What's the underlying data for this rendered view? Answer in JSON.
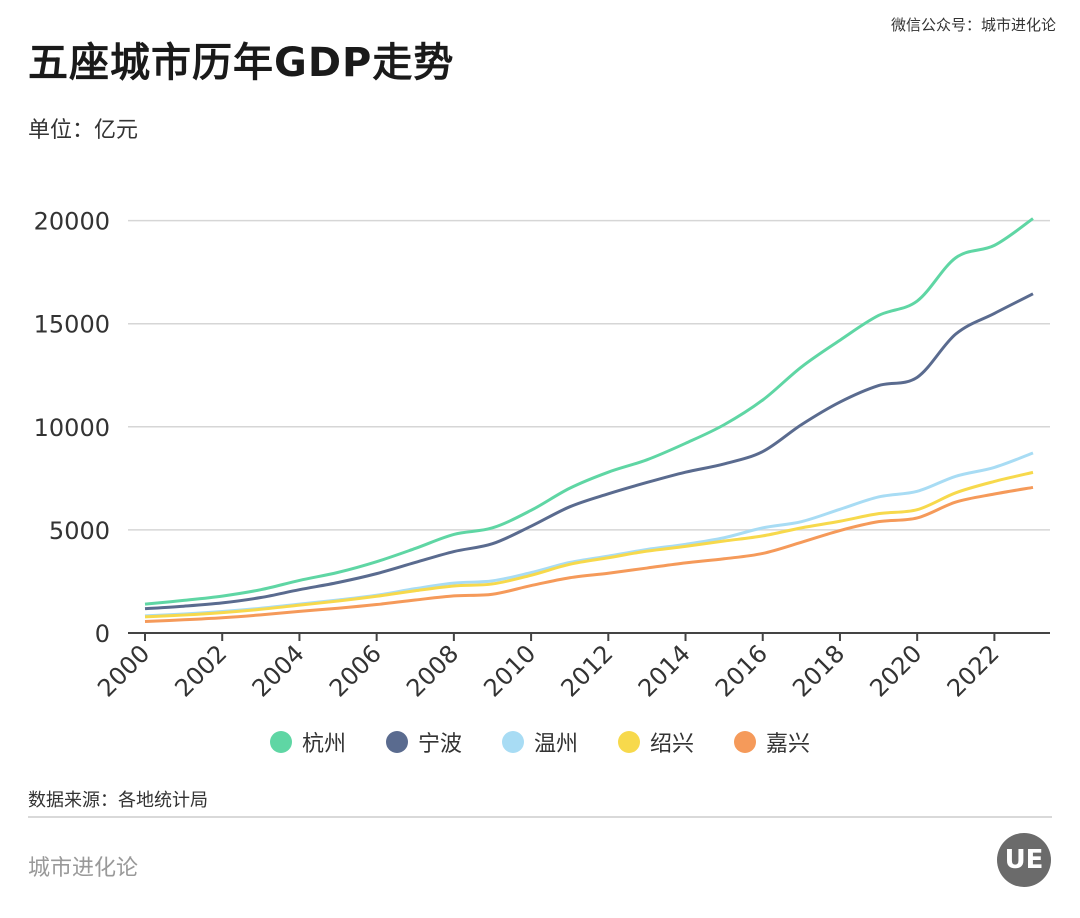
{
  "header": {
    "title": "五座城市历年GDP走势",
    "unit": "单位：亿元",
    "credit": "微信公众号：城市进化论"
  },
  "footer": {
    "source": "数据来源：各地统计局",
    "brand": "城市进化论",
    "logo_text": "UE"
  },
  "chart_data": {
    "type": "line",
    "x": [
      2000,
      2001,
      2002,
      2003,
      2004,
      2005,
      2006,
      2007,
      2008,
      2009,
      2010,
      2011,
      2012,
      2013,
      2014,
      2015,
      2016,
      2017,
      2018,
      2019,
      2020,
      2021,
      2022,
      2023
    ],
    "xticks": [
      "2000",
      "2002",
      "2004",
      "2006",
      "2008",
      "2010",
      "2012",
      "2014",
      "2016",
      "2018",
      "2020",
      "2022"
    ],
    "ylim": [
      0,
      21000
    ],
    "yticks": [
      "0",
      "5000",
      "10000",
      "15000",
      "20000"
    ],
    "grid": true,
    "legend_position": "bottom",
    "series": [
      {
        "name": "杭州",
        "color": "#5fd6a4",
        "values": [
          1400,
          1580,
          1790,
          2100,
          2550,
          2940,
          3460,
          4100,
          4780,
          5100,
          5950,
          7020,
          7800,
          8400,
          9200,
          10100,
          11300,
          12900,
          14200,
          15400,
          16100,
          18200,
          18800,
          20100
        ]
      },
      {
        "name": "宁波",
        "color": "#5a6b8f",
        "values": [
          1180,
          1300,
          1460,
          1720,
          2100,
          2450,
          2880,
          3420,
          3950,
          4330,
          5180,
          6120,
          6750,
          7300,
          7800,
          8200,
          8800,
          10100,
          11200,
          12000,
          12400,
          14500,
          15500,
          16450
        ]
      },
      {
        "name": "温州",
        "color": "#a8dcf4",
        "values": [
          830,
          920,
          1040,
          1200,
          1400,
          1600,
          1830,
          2150,
          2420,
          2530,
          2930,
          3420,
          3730,
          4050,
          4300,
          4620,
          5100,
          5400,
          6000,
          6600,
          6870,
          7600,
          8030,
          8730
        ]
      },
      {
        "name": "绍兴",
        "color": "#f7d94c",
        "values": [
          780,
          870,
          990,
          1150,
          1350,
          1550,
          1780,
          2050,
          2280,
          2380,
          2800,
          3330,
          3650,
          3970,
          4200,
          4460,
          4710,
          5100,
          5420,
          5790,
          5980,
          6800,
          7350,
          7790
        ]
      },
      {
        "name": "嘉兴",
        "color": "#f59a5a",
        "values": [
          560,
          640,
          740,
          880,
          1050,
          1200,
          1380,
          1600,
          1800,
          1880,
          2300,
          2680,
          2900,
          3150,
          3400,
          3600,
          3860,
          4400,
          4970,
          5400,
          5580,
          6350,
          6740,
          7060
        ]
      }
    ]
  }
}
